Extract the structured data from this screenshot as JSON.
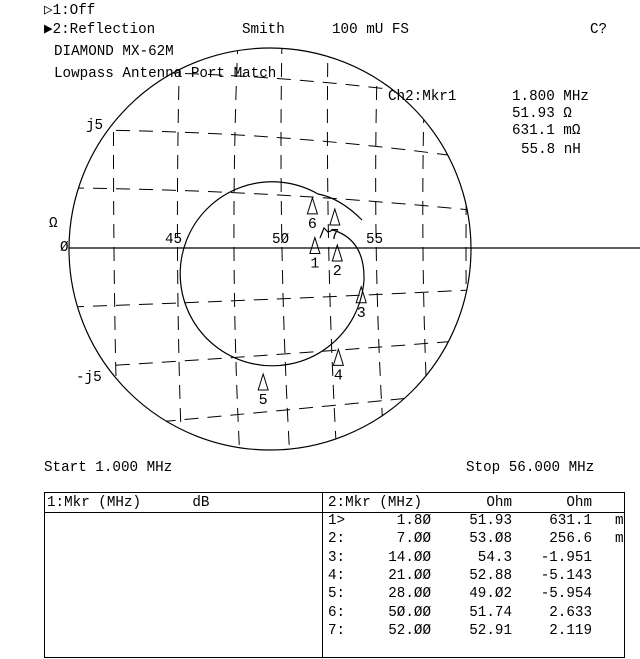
{
  "header": {
    "ch1_label": "▷1:Off",
    "ch2_label": "▶2:Reflection",
    "format": "Smith",
    "scale": "100 mU FS",
    "cal_status": "C?"
  },
  "title": {
    "line1": "DIAMOND MX-62M",
    "line2": "Lowpass Antenna Port Match"
  },
  "marker_readout": {
    "label": "Ch2:Mkr1",
    "frequency": "1.800 MHz",
    "resistance": "51.93 Ω",
    "reactance": "631.1 mΩ",
    "inductance": "55.8 nH"
  },
  "sweep": {
    "start": "Start 1.000 MHz",
    "stop": "Stop 56.000 MHz"
  },
  "chart_data": {
    "type": "smith",
    "full_scale_reflection": 0.1,
    "reference_impedance_ohm": 50,
    "axis_labels": {
      "unit": "Ω",
      "zero": "Ø",
      "r45": "45",
      "r50": "5Ø",
      "r55": "55",
      "pos_j": "j5",
      "neg_j": "-j5"
    },
    "markers": [
      {
        "id": "1",
        "freq_mhz": 1.8,
        "r_ohm": 51.93,
        "x_ohm": 0.6311
      },
      {
        "id": "2",
        "freq_mhz": 7.0,
        "r_ohm": 53.08,
        "x_ohm": 0.2566
      },
      {
        "id": "3",
        "freq_mhz": 14.0,
        "r_ohm": 54.3,
        "x_ohm": -1.951
      },
      {
        "id": "4",
        "freq_mhz": 21.0,
        "r_ohm": 52.88,
        "x_ohm": -5.143
      },
      {
        "id": "5",
        "freq_mhz": 28.0,
        "r_ohm": 49.02,
        "x_ohm": -5.954
      },
      {
        "id": "6",
        "freq_mhz": 50.0,
        "r_ohm": 51.74,
        "x_ohm": 2.633
      },
      {
        "id": "7",
        "freq_mhz": 52.0,
        "r_ohm": 52.91,
        "x_ohm": 2.119
      }
    ]
  },
  "table": {
    "left_header": "1:Mkr (MHz)      dB",
    "right_header": {
      "col1": "2:Mkr (MHz)",
      "col2": "Ohm",
      "col3": "Ohm"
    },
    "rows": [
      {
        "idx": "1>",
        "freq": "1.8Ø",
        "r": "51.93",
        "x": "631.1",
        "unit": "m"
      },
      {
        "idx": "2:",
        "freq": "7.ØØ",
        "r": "53.Ø8",
        "x": "256.6",
        "unit": "m"
      },
      {
        "idx": "3:",
        "freq": "14.ØØ",
        "r": "54.3",
        "x": "-1.951",
        "unit": ""
      },
      {
        "idx": "4:",
        "freq": "21.ØØ",
        "r": "52.88",
        "x": "-5.143",
        "unit": ""
      },
      {
        "idx": "5:",
        "freq": "28.ØØ",
        "r": "49.Ø2",
        "x": "-5.954",
        "unit": ""
      },
      {
        "idx": "6:",
        "freq": "5Ø.ØØ",
        "r": "51.74",
        "x": "2.633",
        "unit": ""
      },
      {
        "idx": "7:",
        "freq": "52.ØØ",
        "r": "52.91",
        "x": "2.119",
        "unit": ""
      }
    ]
  }
}
